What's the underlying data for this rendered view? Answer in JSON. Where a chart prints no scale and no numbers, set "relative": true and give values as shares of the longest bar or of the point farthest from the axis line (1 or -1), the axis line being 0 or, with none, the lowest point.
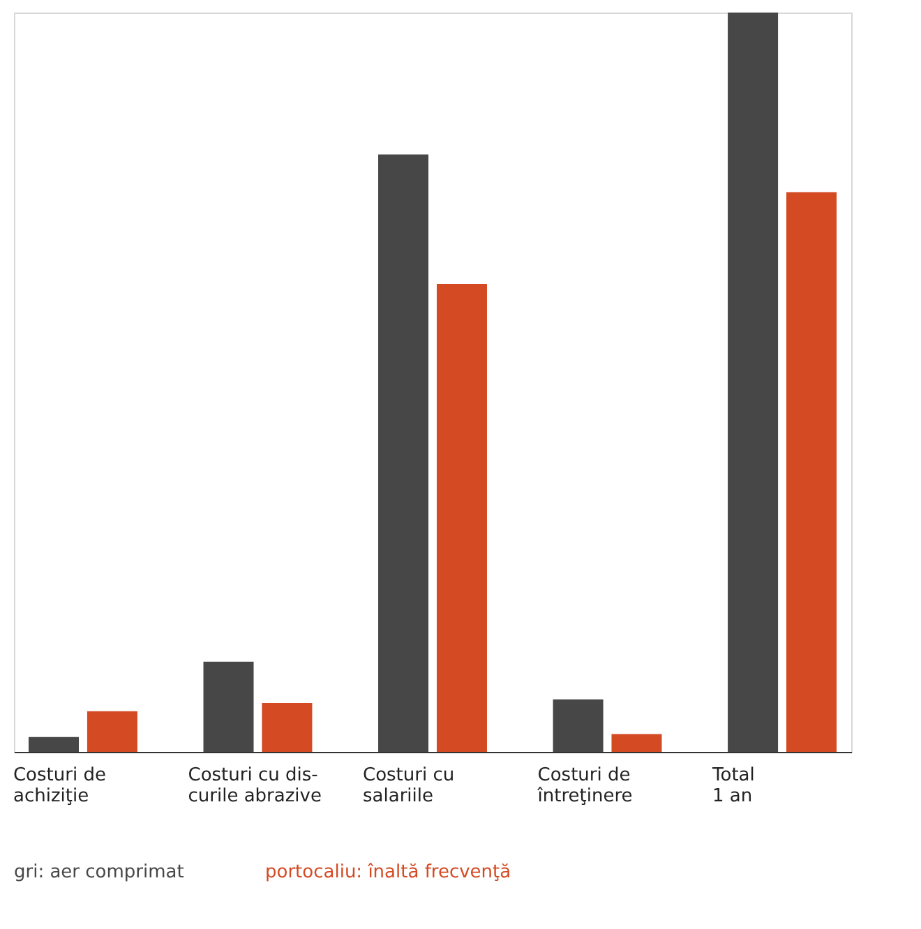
{
  "chart_data": {
    "type": "bar",
    "relative": true,
    "categories": [
      "Costuri de\nachiziţie",
      "Costuri cu dis-\ncurile abrazive",
      "Costuri cu\nsalariile",
      "Costuri de\nîntreţinere",
      "Total\n1 an"
    ],
    "series": [
      {
        "name": "gri: aer comprimat",
        "color": "#474747",
        "values": [
          0.02,
          0.122,
          0.808,
          0.071,
          1
        ]
      },
      {
        "name": "portocaliu: înaltă frecvenţă",
        "color": "#d44a23",
        "values": [
          0.055,
          0.066,
          0.633,
          0.024,
          0.757
        ]
      }
    ],
    "grid": false
  }
}
